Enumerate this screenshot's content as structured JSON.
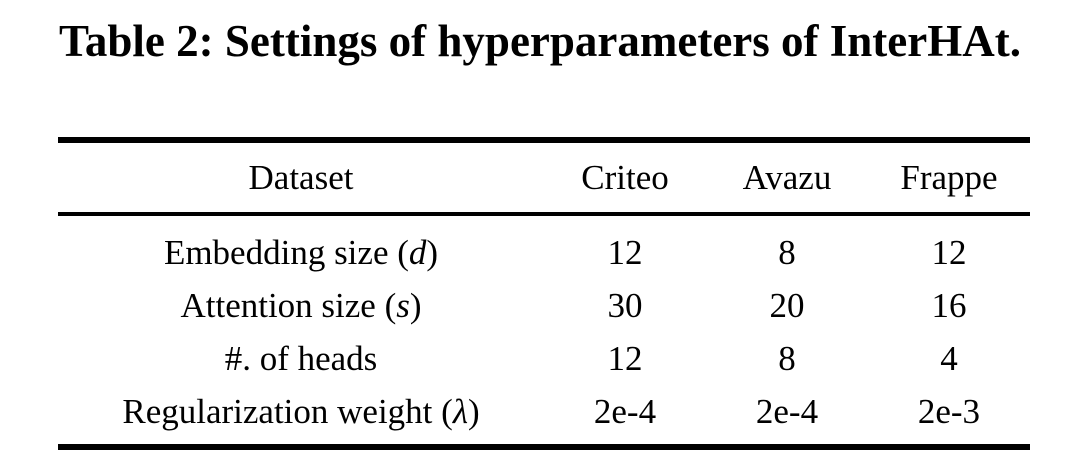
{
  "caption": "Table 2: Settings of hyperparameters of InterHAt.",
  "colors": {
    "text": "#000000",
    "background": "#ffffff",
    "rule": "#000000"
  },
  "table": {
    "columns": [
      "Dataset",
      "Criteo",
      "Avazu",
      "Frappe"
    ],
    "rows": [
      {
        "prefix": "Embedding size (",
        "symbol": "d",
        "suffix": ")",
        "values": [
          "12",
          "8",
          "12"
        ]
      },
      {
        "prefix": "Attention size (",
        "symbol": "s",
        "suffix": ")",
        "values": [
          "30",
          "20",
          "16"
        ]
      },
      {
        "prefix": "#. of heads",
        "symbol": "",
        "suffix": "",
        "values": [
          "12",
          "8",
          "4"
        ]
      },
      {
        "prefix": "Regularization weight (",
        "symbol": "λ",
        "suffix": ")",
        "values": [
          "2e-4",
          "2e-4",
          "2e-3"
        ]
      }
    ]
  }
}
